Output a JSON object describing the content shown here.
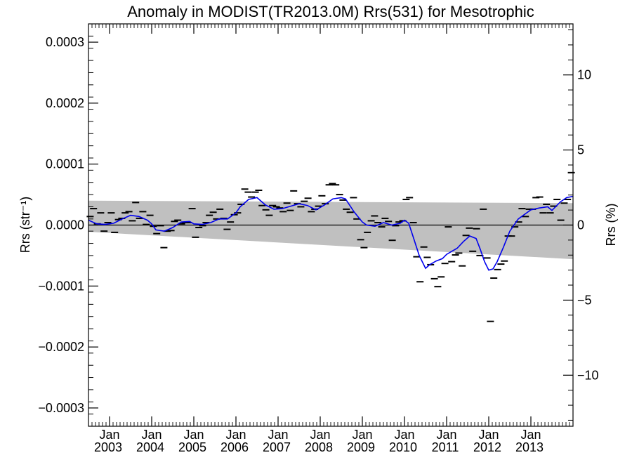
{
  "chart_data": {
    "type": "line",
    "title": "Anomaly in MODIST(TR2013.0M) Rrs(531) for Mesotrophic",
    "ylabel_left": "Rrs (str⁻¹)",
    "ylabel_right": "Rrs (%)",
    "xlabel": "",
    "xlim": [
      2002.5,
      2014.0
    ],
    "ylim_left": [
      -0.00033,
      0.00033
    ],
    "ylim_right": [
      -13.4,
      13.4
    ],
    "grid": false,
    "legend": "none",
    "y_ticks_left": [
      {
        "value": 0.0003,
        "label": "0.0003"
      },
      {
        "value": 0.0002,
        "label": "0.0002"
      },
      {
        "value": 0.0001,
        "label": "0.0001"
      },
      {
        "value": 0.0,
        "label": "0.0000"
      },
      {
        "value": -0.0001,
        "label": "−0.0001"
      },
      {
        "value": -0.0002,
        "label": "−0.0002"
      },
      {
        "value": -0.0003,
        "label": "−0.0003"
      }
    ],
    "y_ticks_right": [
      {
        "value": 10,
        "label": "10"
      },
      {
        "value": 5,
        "label": "5"
      },
      {
        "value": 0,
        "label": "0"
      },
      {
        "value": -5,
        "label": "−5"
      },
      {
        "value": -10,
        "label": "−10"
      }
    ],
    "x_ticks": [
      {
        "value": 2003.0,
        "month": "Jan",
        "year": "2003"
      },
      {
        "value": 2004.0,
        "month": "Jan",
        "year": "2004"
      },
      {
        "value": 2005.0,
        "month": "Jan",
        "year": "2005"
      },
      {
        "value": 2006.0,
        "month": "Jan",
        "year": "2006"
      },
      {
        "value": 2007.0,
        "month": "Jan",
        "year": "2007"
      },
      {
        "value": 2008.0,
        "month": "Jan",
        "year": "2008"
      },
      {
        "value": 2009.0,
        "month": "Jan",
        "year": "2009"
      },
      {
        "value": 2010.0,
        "month": "Jan",
        "year": "2010"
      },
      {
        "value": 2011.0,
        "month": "Jan",
        "year": "2011"
      },
      {
        "value": 2012.0,
        "month": "Jan",
        "year": "2012"
      },
      {
        "value": 2013.0,
        "month": "Jan",
        "year": "2013"
      }
    ],
    "confidence_band": {
      "x": [
        2002.5,
        2014.0
      ],
      "upper": [
        4e-05,
        3.6e-05
      ],
      "lower": [
        -1.1e-05,
        -5.6e-05
      ]
    },
    "monthly_anomalies": [
      [
        2002.54,
        1.4e-05
      ],
      [
        2002.62,
        2.7e-05
      ],
      [
        2002.71,
        2e-06
      ],
      [
        2002.79,
        2e-05
      ],
      [
        2002.87,
        -1e-05
      ],
      [
        2002.96,
        4e-06
      ],
      [
        2003.04,
        2e-05
      ],
      [
        2003.12,
        -1.2e-05
      ],
      [
        2003.21,
        9e-06
      ],
      [
        2003.29,
        1.1e-05
      ],
      [
        2003.37,
        2e-05
      ],
      [
        2003.46,
        2.2e-05
      ],
      [
        2003.54,
        7e-06
      ],
      [
        2003.62,
        3.7e-05
      ],
      [
        2003.71,
        1.1e-05
      ],
      [
        2003.79,
        2.2e-05
      ],
      [
        2003.87,
        1e-06
      ],
      [
        2003.96,
        1.6e-05
      ],
      [
        2004.04,
        -2e-06
      ],
      [
        2004.12,
        -1.4e-05
      ],
      [
        2004.21,
        -1e-06
      ],
      [
        2004.29,
        -3.7e-05
      ],
      [
        2004.37,
        -1e-05
      ],
      [
        2004.46,
        -9e-06
      ],
      [
        2004.54,
        6e-06
      ],
      [
        2004.62,
        8e-06
      ],
      [
        2004.71,
        2e-06
      ],
      [
        2004.79,
        4e-06
      ],
      [
        2004.87,
        4e-06
      ],
      [
        2004.96,
        2.7e-05
      ],
      [
        2005.04,
        -2e-05
      ],
      [
        2005.12,
        -4e-06
      ],
      [
        2005.21,
        -1e-06
      ],
      [
        2005.29,
        4e-06
      ],
      [
        2005.37,
        1.6e-05
      ],
      [
        2005.46,
        2.1e-05
      ],
      [
        2005.54,
        1e-05
      ],
      [
        2005.62,
        2.6e-05
      ],
      [
        2005.71,
        1.1e-05
      ],
      [
        2005.79,
        -7e-06
      ],
      [
        2005.87,
        5e-06
      ],
      [
        2005.96,
        1.7e-05
      ],
      [
        2006.04,
        2e-05
      ],
      [
        2006.12,
        3.4e-05
      ],
      [
        2006.21,
        5.9e-05
      ],
      [
        2006.29,
        5.4e-05
      ],
      [
        2006.37,
        4.6e-05
      ],
      [
        2006.46,
        5.4e-05
      ],
      [
        2006.54,
        5.7e-05
      ],
      [
        2006.62,
        3.2e-05
      ],
      [
        2006.71,
        2.5e-05
      ],
      [
        2006.79,
        1.6e-05
      ],
      [
        2006.87,
        3.2e-05
      ],
      [
        2006.96,
        3e-05
      ],
      [
        2007.04,
        2.8e-05
      ],
      [
        2007.12,
        2.2e-05
      ],
      [
        2007.21,
        3.6e-05
      ],
      [
        2007.29,
        2.4e-05
      ],
      [
        2007.37,
        5.6e-05
      ],
      [
        2007.46,
        3.5e-05
      ],
      [
        2007.54,
        3e-05
      ],
      [
        2007.62,
        3.9e-05
      ],
      [
        2007.71,
        4.4e-05
      ],
      [
        2007.79,
        2.2e-05
      ],
      [
        2007.87,
        2.6e-05
      ],
      [
        2007.96,
        3.1e-05
      ],
      [
        2008.04,
        4.8e-05
      ],
      [
        2008.12,
        3.5e-05
      ],
      [
        2008.21,
        6.6e-05
      ],
      [
        2008.29,
        6.8e-05
      ],
      [
        2008.37,
        6.6e-05
      ],
      [
        2008.46,
        5e-05
      ],
      [
        2008.54,
        4.1e-05
      ],
      [
        2008.62,
        2.6e-05
      ],
      [
        2008.71,
        2.1e-05
      ],
      [
        2008.79,
        4.5e-05
      ],
      [
        2008.87,
        1e-05
      ],
      [
        2008.96,
        -2.4e-05
      ],
      [
        2009.04,
        -3.7e-05
      ],
      [
        2009.12,
        -1.2e-05
      ],
      [
        2009.21,
        7e-06
      ],
      [
        2009.29,
        1.5e-05
      ],
      [
        2009.37,
        4e-06
      ],
      [
        2009.46,
        -3e-06
      ],
      [
        2009.54,
        1.1e-05
      ],
      [
        2009.62,
        6e-06
      ],
      [
        2009.71,
        -2.5e-05
      ],
      [
        2009.79,
        -1e-06
      ],
      [
        2009.87,
        5e-06
      ],
      [
        2009.96,
        7e-06
      ],
      [
        2010.04,
        4.2e-05
      ],
      [
        2010.12,
        4.5e-05
      ],
      [
        2010.21,
        4e-06
      ],
      [
        2010.29,
        -5.2e-05
      ],
      [
        2010.37,
        -9.3e-05
      ],
      [
        2010.46,
        -3.6e-05
      ],
      [
        2010.54,
        -5.3e-05
      ],
      [
        2010.62,
        -6.5e-05
      ],
      [
        2010.71,
        -8.8e-05
      ],
      [
        2010.79,
        -0.000101
      ],
      [
        2010.87,
        -8.5e-05
      ],
      [
        2010.96,
        -6.3e-05
      ],
      [
        2011.04,
        -3e-06
      ],
      [
        2011.12,
        -6e-05
      ],
      [
        2011.21,
        -4.9e-05
      ],
      [
        2011.29,
        -4.6e-05
      ],
      [
        2011.37,
        -6.7e-05
      ],
      [
        2011.46,
        -1.7e-05
      ],
      [
        2011.54,
        -5e-06
      ],
      [
        2011.62,
        -4.3e-05
      ],
      [
        2011.71,
        -6e-06
      ],
      [
        2011.79,
        -5e-05
      ],
      [
        2011.87,
        2.6e-05
      ],
      [
        2011.96,
        -5.4e-05
      ],
      [
        2012.04,
        -0.000158
      ],
      [
        2012.12,
        -8.7e-05
      ],
      [
        2012.21,
        -7.3e-05
      ],
      [
        2012.29,
        -6.4e-05
      ],
      [
        2012.37,
        -5.9e-05
      ],
      [
        2012.46,
        -1.8e-05
      ],
      [
        2012.54,
        -1.8e-05
      ],
      [
        2012.62,
        -3e-06
      ],
      [
        2012.71,
        5e-06
      ],
      [
        2012.79,
        2.7e-05
      ],
      [
        2012.87,
        1.4e-05
      ],
      [
        2012.96,
        2.6e-05
      ],
      [
        2013.04,
        2.6e-05
      ],
      [
        2013.12,
        4.5e-05
      ],
      [
        2013.21,
        4.6e-05
      ],
      [
        2013.29,
        2e-05
      ],
      [
        2013.37,
        3.4e-05
      ],
      [
        2013.46,
        2e-05
      ],
      [
        2013.54,
        3.1e-05
      ],
      [
        2013.62,
        4.2e-05
      ],
      [
        2013.71,
        8e-06
      ],
      [
        2013.79,
        3.6e-05
      ],
      [
        2013.87,
        4.2e-05
      ],
      [
        2013.96,
        8.6e-05
      ]
    ],
    "running_mean": {
      "x": [
        2002.5,
        2002.7,
        2002.9,
        2003.1,
        2003.3,
        2003.5,
        2003.7,
        2003.9,
        2004.0,
        2004.1,
        2004.3,
        2004.5,
        2004.7,
        2004.9,
        2005.0,
        2005.2,
        2005.4,
        2005.6,
        2005.8,
        2006.0,
        2006.1,
        2006.3,
        2006.5,
        2006.7,
        2006.9,
        2007.1,
        2007.3,
        2007.5,
        2007.7,
        2007.9,
        2008.1,
        2008.3,
        2008.5,
        2008.6,
        2008.8,
        2009.0,
        2009.1,
        2009.3,
        2009.5,
        2009.7,
        2009.9,
        2010.0,
        2010.1,
        2010.2,
        2010.35,
        2010.5,
        2010.6,
        2010.75,
        2010.9,
        2011.0,
        2011.1,
        2011.25,
        2011.4,
        2011.55,
        2011.7,
        2011.8,
        2011.9,
        2012.0,
        2012.1,
        2012.2,
        2012.35,
        2012.5,
        2012.7,
        2012.9,
        2013.0,
        2013.2,
        2013.4,
        2013.5,
        2013.7,
        2013.85,
        2014.0
      ],
      "y": [
        8e-06,
        2e-06,
        1e-06,
        3e-06,
        1e-05,
        1.6e-05,
        1.4e-05,
        8e-06,
        2e-06,
        -8e-06,
        -1e-05,
        -4e-06,
        5e-06,
        6e-06,
        2e-06,
        1e-06,
        4e-06,
        1e-05,
        1e-05,
        2e-05,
        3e-05,
        4.2e-05,
        4.5e-05,
        3.3e-05,
        2.6e-05,
        2.7e-05,
        3.1e-05,
        3.5e-05,
        3.2e-05,
        2.5e-05,
        3.3e-05,
        4.3e-05,
        4.5e-05,
        4.3e-05,
        2.2e-05,
        5e-06,
        0.0,
        -2e-06,
        4e-06,
        0.0,
        3e-06,
        8e-06,
        3e-06,
        -1.8e-05,
        -5e-05,
        -7.1e-05,
        -6.5e-05,
        -5.9e-05,
        -5.5e-05,
        -4.8e-05,
        -4.4e-05,
        -3.8e-05,
        -2.7e-05,
        -1.8e-05,
        -2.2e-05,
        -4e-05,
        -6e-05,
        -7.4e-05,
        -7.2e-05,
        -6e-05,
        -3.6e-05,
        -1e-05,
        1e-05,
        2e-05,
        2.5e-05,
        2.8e-05,
        3e-05,
        2.4e-05,
        3.8e-05,
        4.5e-05,
        4.7e-05
      ]
    }
  }
}
